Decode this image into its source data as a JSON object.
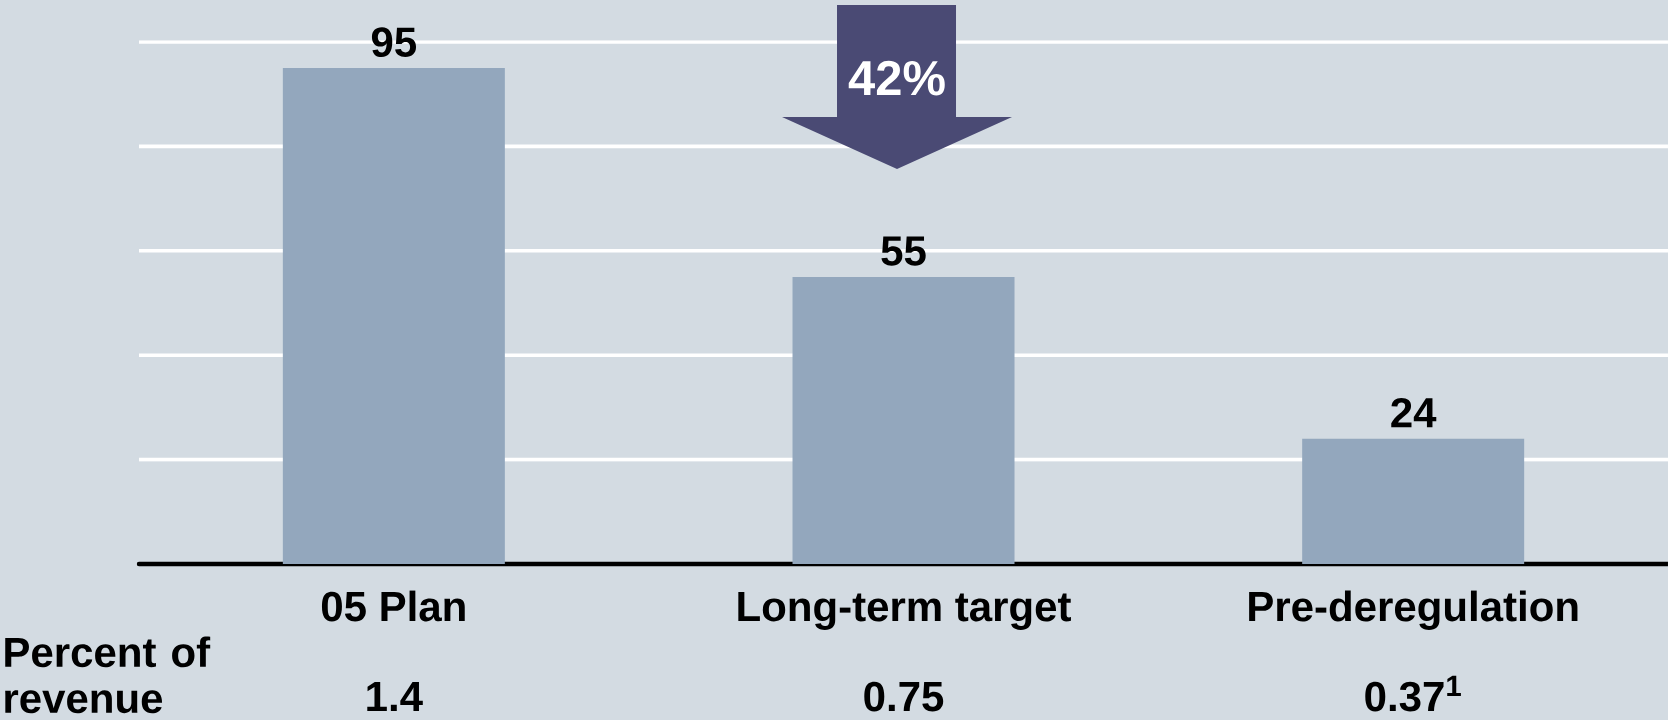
{
  "chart_data": {
    "type": "bar",
    "categories": [
      "05 Plan",
      "Long-term target",
      "Pre-deregulation"
    ],
    "values": [
      95,
      55,
      24
    ],
    "color": "#93a7bd",
    "ylim": [
      0,
      100
    ],
    "yticks": [
      {
        "value": 20,
        "label": null
      },
      {
        "value": 40,
        "label": null
      },
      {
        "value": 60,
        "label": null
      },
      {
        "value": 80,
        "label": null
      },
      {
        "value": 100,
        "label": null
      }
    ],
    "grid": "y",
    "tick_labels": "x",
    "data_labels": true,
    "annotations": [
      "42%",
      "Percent of revenue",
      "1.4",
      "0.75",
      "0.37$^{1}$"
    ]
  }
}
